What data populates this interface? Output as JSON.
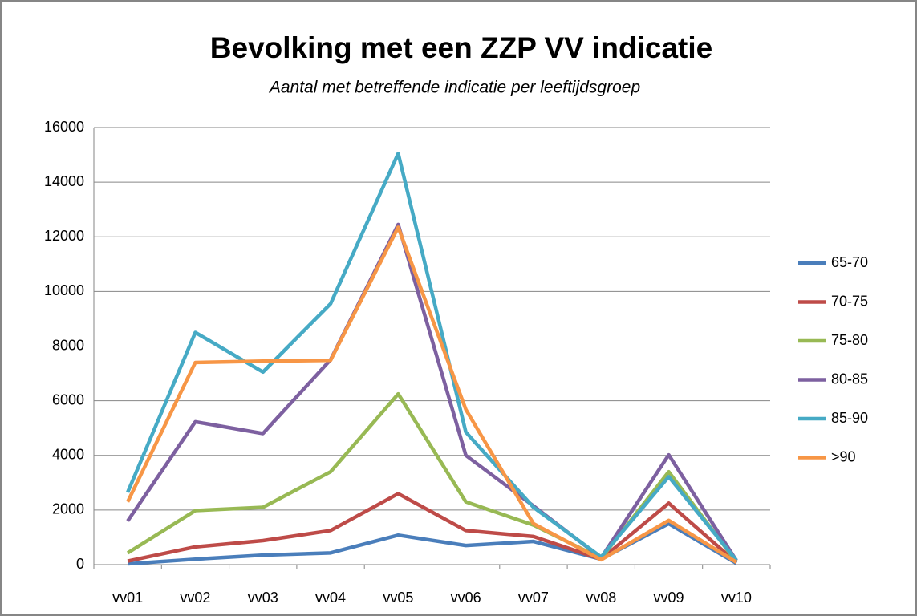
{
  "chart_data": {
    "type": "line",
    "title": "Bevolking met een ZZP VV indicatie",
    "subtitle": "Aantal met betreffende indicatie per leeftijdsgroep",
    "categories": [
      "vv01",
      "vv02",
      "vv03",
      "vv04",
      "vv05",
      "vv06",
      "vv07",
      "vv08",
      "vv09",
      "vv10"
    ],
    "series": [
      {
        "name": "65-70",
        "color": "#4a7ebb",
        "values": [
          30,
          200,
          350,
          430,
          1080,
          700,
          850,
          200,
          1500,
          50
        ]
      },
      {
        "name": "70-75",
        "color": "#be4b48",
        "values": [
          130,
          650,
          880,
          1250,
          2600,
          1250,
          1030,
          200,
          2250,
          80
        ]
      },
      {
        "name": "75-80",
        "color": "#98b954",
        "values": [
          430,
          1980,
          2100,
          3400,
          6250,
          2300,
          1450,
          230,
          3400,
          100
        ]
      },
      {
        "name": "80-85",
        "color": "#7d60a0",
        "values": [
          1600,
          5230,
          4800,
          7500,
          12450,
          4000,
          2150,
          250,
          4020,
          150
        ]
      },
      {
        "name": "85-90",
        "color": "#46aac5",
        "values": [
          2650,
          8500,
          7050,
          9550,
          15050,
          4850,
          2100,
          280,
          3220,
          160
        ]
      },
      {
        "name": ">90",
        "color": "#f79646",
        "values": [
          2300,
          7400,
          7450,
          7480,
          12350,
          5680,
          1500,
          180,
          1620,
          90
        ]
      }
    ],
    "ylim": [
      0,
      16000
    ],
    "yticks": [
      0,
      2000,
      4000,
      6000,
      8000,
      10000,
      12000,
      14000,
      16000
    ],
    "grid": true,
    "legend": "right"
  }
}
